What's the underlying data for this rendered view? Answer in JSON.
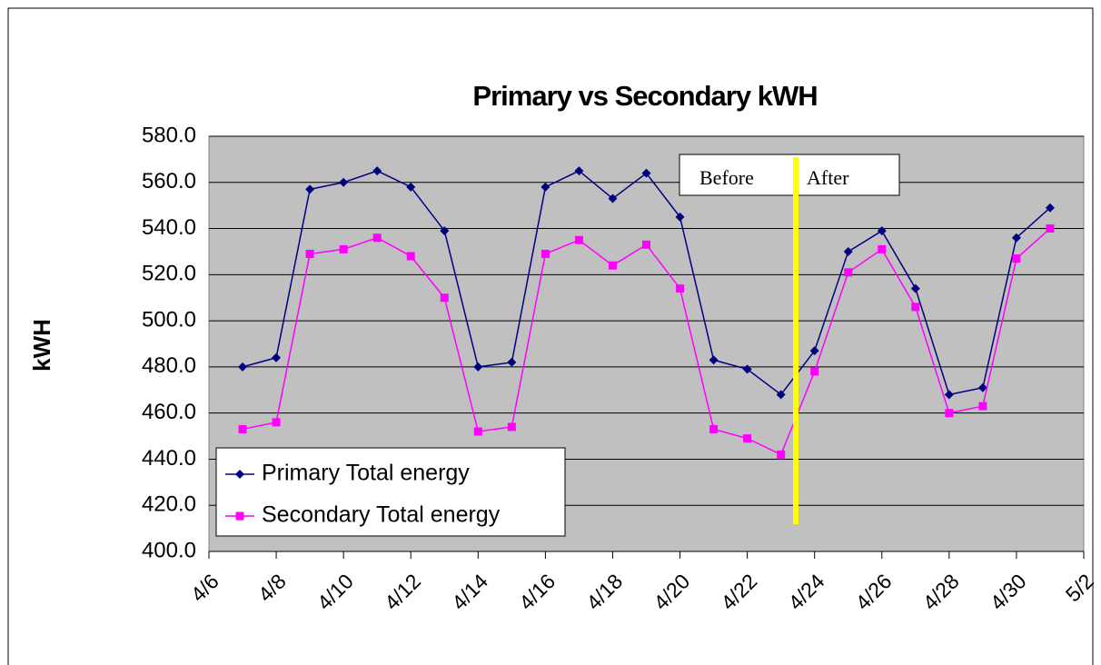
{
  "chart_data": {
    "type": "line",
    "title": "Primary vs Secondary kWH",
    "y_label": "kWH",
    "x": [
      "4/7",
      "4/8",
      "4/9",
      "4/10",
      "4/11",
      "4/12",
      "4/13",
      "4/14",
      "4/15",
      "4/16",
      "4/17",
      "4/18",
      "4/19",
      "4/20",
      "4/21",
      "4/22",
      "4/23",
      "4/24",
      "4/25",
      "4/26",
      "4/27",
      "4/28",
      "4/29",
      "4/30",
      "5/1"
    ],
    "series": [
      {
        "name": "Primary Total energy",
        "color": "#000080",
        "marker": "diamond",
        "values": [
          480,
          484,
          557,
          560,
          565,
          558,
          539,
          480,
          482,
          558,
          565,
          553,
          564,
          545,
          483,
          479,
          468,
          487,
          530,
          539,
          514,
          468,
          471,
          536,
          549
        ]
      },
      {
        "name": "Secondary Total energy",
        "color": "#ff00ff",
        "marker": "square",
        "values": [
          453,
          456,
          529,
          531,
          536,
          528,
          510,
          452,
          454,
          529,
          535,
          524,
          533,
          514,
          453,
          449,
          442,
          478,
          521,
          531,
          506,
          460,
          463,
          527,
          540
        ]
      }
    ],
    "xlim": [
      "4/6",
      "5/2"
    ],
    "xticks": [
      "4/6",
      "4/8",
      "4/10",
      "4/12",
      "4/14",
      "4/16",
      "4/18",
      "4/20",
      "4/22",
      "4/24",
      "4/26",
      "4/28",
      "4/30",
      "5/2"
    ],
    "ylim": [
      400,
      580
    ],
    "yticks": [
      {
        "value": 400,
        "label": "400.0"
      },
      {
        "value": 420,
        "label": "420.0"
      },
      {
        "value": 440,
        "label": "440.0"
      },
      {
        "value": 460,
        "label": "460.0"
      },
      {
        "value": 480,
        "label": "480.0"
      },
      {
        "value": 500,
        "label": "500.0"
      },
      {
        "value": 520,
        "label": "520.0"
      },
      {
        "value": 540,
        "label": "540.0"
      },
      {
        "value": 560,
        "label": "560.0"
      },
      {
        "value": 580,
        "label": "580.0"
      }
    ],
    "grid": true,
    "legend": "lower left",
    "annotations": [
      "Before",
      "After"
    ]
  }
}
